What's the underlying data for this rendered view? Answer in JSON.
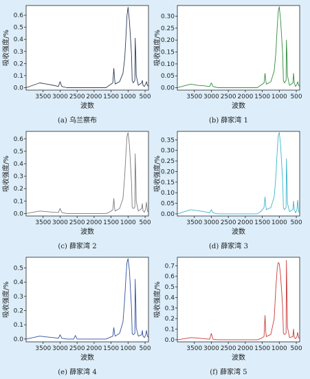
{
  "theme": {
    "background": "#ddeefa",
    "axis_color": "#222222"
  },
  "chart_data": [
    {
      "type": "line",
      "caption_label": "(a)",
      "caption_name": "乌兰察布",
      "xlabel": "波数",
      "ylabel": "吸收强度/%",
      "xlim": [
        4000,
        400
      ],
      "ylim": [
        -0.02,
        0.68
      ],
      "xticks": [
        3500,
        3000,
        2500,
        2000,
        1500,
        1000,
        500
      ],
      "yticks": [
        0.0,
        0.1,
        0.2,
        0.3,
        0.4,
        0.5,
        0.6
      ],
      "ytick_labels": [
        "0.0",
        "0.1",
        "0.2",
        "0.3",
        "0.4",
        "0.5",
        "0.6"
      ],
      "color": "#2a3a55",
      "series": [
        {
          "x": [
            4000,
            3800,
            3600,
            3400,
            3200,
            3050,
            3000,
            2950,
            2800,
            2600,
            2400,
            2200,
            2000,
            1800,
            1650,
            1550,
            1450,
            1420,
            1400,
            1380,
            1250,
            1150,
            1100,
            1060,
            1030,
            1000,
            960,
            900,
            880,
            850,
            800,
            790,
            770,
            760,
            700,
            600,
            580,
            560,
            520,
            480,
            460,
            430,
            400
          ],
          "y": [
            0.0,
            0.02,
            0.04,
            0.03,
            0.02,
            0.01,
            0.05,
            0.01,
            0.0,
            0.0,
            0.0,
            0.0,
            0.0,
            0.0,
            0.0,
            0.02,
            0.04,
            0.16,
            0.08,
            0.03,
            0.05,
            0.12,
            0.24,
            0.44,
            0.6,
            0.665,
            0.55,
            0.28,
            0.06,
            0.04,
            0.06,
            0.41,
            0.25,
            0.1,
            0.02,
            0.04,
            0.06,
            0.02,
            0.01,
            0.03,
            0.05,
            0.02,
            0.01
          ]
        }
      ]
    },
    {
      "type": "line",
      "caption_label": "(b)",
      "caption_name": "薛家湾 1",
      "xlabel": "波数",
      "ylabel": "吸收强度/%",
      "xlim": [
        4000,
        400
      ],
      "ylim": [
        -0.01,
        0.345
      ],
      "xticks": [
        3500,
        3000,
        2500,
        2000,
        1500,
        1000,
        500
      ],
      "yticks": [
        0.0,
        0.05,
        0.1,
        0.15,
        0.2,
        0.25,
        0.3
      ],
      "ytick_labels": [
        "0.00",
        "0.05",
        "0.10",
        "0.15",
        "0.20",
        "0.25",
        "0.30"
      ],
      "color": "#2e8b3e",
      "series": [
        {
          "x": [
            4000,
            3800,
            3600,
            3400,
            3200,
            3050,
            3000,
            2950,
            2800,
            2600,
            2400,
            2200,
            2000,
            1800,
            1650,
            1550,
            1450,
            1420,
            1400,
            1380,
            1250,
            1150,
            1100,
            1060,
            1030,
            1000,
            960,
            900,
            880,
            850,
            800,
            790,
            770,
            760,
            700,
            600,
            580,
            560,
            520,
            480,
            460,
            430,
            400
          ],
          "y": [
            0.0,
            0.008,
            0.015,
            0.01,
            0.008,
            0.005,
            0.02,
            0.005,
            0.0,
            0.0,
            0.0,
            0.0,
            0.0,
            0.0,
            0.0,
            0.01,
            0.02,
            0.06,
            0.03,
            0.015,
            0.025,
            0.07,
            0.15,
            0.26,
            0.32,
            0.34,
            0.28,
            0.14,
            0.03,
            0.02,
            0.03,
            0.2,
            0.12,
            0.05,
            0.01,
            0.02,
            0.06,
            0.02,
            0.005,
            0.015,
            0.025,
            0.01,
            0.005
          ]
        }
      ]
    },
    {
      "type": "line",
      "caption_label": "(c)",
      "caption_name": "薛家湾 2",
      "xlabel": "波数",
      "ylabel": "吸收强度/%",
      "xlim": [
        4000,
        400
      ],
      "ylim": [
        -0.02,
        0.66
      ],
      "xticks": [
        3500,
        3000,
        2500,
        2000,
        1500,
        1000,
        500
      ],
      "yticks": [
        0.0,
        0.1,
        0.2,
        0.3,
        0.4,
        0.5,
        0.6
      ],
      "ytick_labels": [
        "0.0",
        "0.1",
        "0.2",
        "0.3",
        "0.4",
        "0.5",
        "0.6"
      ],
      "color": "#7a7a7a",
      "series": [
        {
          "x": [
            4000,
            3800,
            3600,
            3400,
            3200,
            3050,
            3000,
            2950,
            2800,
            2600,
            2400,
            2200,
            2000,
            1800,
            1650,
            1550,
            1450,
            1420,
            1400,
            1380,
            1250,
            1150,
            1100,
            1060,
            1030,
            1000,
            960,
            900,
            880,
            850,
            800,
            790,
            770,
            760,
            700,
            600,
            580,
            560,
            520,
            480,
            460,
            430,
            400
          ],
          "y": [
            0.0,
            0.01,
            0.02,
            0.015,
            0.01,
            0.008,
            0.04,
            0.008,
            0.0,
            0.0,
            0.0,
            0.0,
            0.0,
            0.0,
            0.0,
            0.01,
            0.03,
            0.12,
            0.05,
            0.02,
            0.04,
            0.12,
            0.3,
            0.5,
            0.62,
            0.65,
            0.55,
            0.25,
            0.05,
            0.04,
            0.05,
            0.48,
            0.28,
            0.1,
            0.02,
            0.04,
            0.08,
            0.02,
            0.01,
            0.04,
            0.09,
            0.02,
            0.01
          ]
        }
      ]
    },
    {
      "type": "line",
      "caption_label": "(d)",
      "caption_name": "薛家湾 3",
      "xlabel": "波数",
      "ylabel": "吸收强度/%",
      "xlim": [
        4000,
        400
      ],
      "ylim": [
        -0.01,
        0.39
      ],
      "xticks": [
        3500,
        3000,
        2500,
        2000,
        1500,
        1000,
        500
      ],
      "yticks": [
        0.0,
        0.05,
        0.1,
        0.15,
        0.2,
        0.25,
        0.3,
        0.35
      ],
      "ytick_labels": [
        "0.00",
        "0.05",
        "0.10",
        "0.15",
        "0.20",
        "0.25",
        "0.30",
        "0.35"
      ],
      "color": "#3bb6cc",
      "series": [
        {
          "x": [
            4000,
            3800,
            3600,
            3400,
            3200,
            3050,
            3000,
            2950,
            2800,
            2600,
            2400,
            2200,
            2000,
            1800,
            1650,
            1550,
            1450,
            1420,
            1400,
            1380,
            1250,
            1150,
            1100,
            1060,
            1030,
            1000,
            960,
            900,
            880,
            850,
            800,
            790,
            770,
            760,
            700,
            600,
            580,
            560,
            520,
            480,
            460,
            430,
            400
          ],
          "y": [
            0.0,
            0.01,
            0.02,
            0.015,
            0.01,
            0.005,
            0.02,
            0.005,
            0.0,
            0.0,
            0.0,
            0.0,
            0.0,
            0.0,
            0.0,
            0.01,
            0.03,
            0.08,
            0.04,
            0.02,
            0.03,
            0.08,
            0.18,
            0.3,
            0.37,
            0.385,
            0.32,
            0.15,
            0.03,
            0.02,
            0.03,
            0.26,
            0.15,
            0.05,
            0.01,
            0.02,
            0.06,
            0.02,
            0.005,
            0.02,
            0.065,
            0.01,
            0.005
          ]
        }
      ]
    },
    {
      "type": "line",
      "caption_label": "(e)",
      "caption_name": "薛家湾 4",
      "xlabel": "波数",
      "ylabel": "吸收强度/%",
      "xlim": [
        4000,
        400
      ],
      "ylim": [
        -0.02,
        0.575
      ],
      "xticks": [
        3500,
        3000,
        2500,
        2000,
        1500,
        1000,
        500
      ],
      "yticks": [
        0.0,
        0.1,
        0.2,
        0.3,
        0.4,
        0.5
      ],
      "ytick_labels": [
        "0.0",
        "0.1",
        "0.2",
        "0.3",
        "0.4",
        "0.5"
      ],
      "color": "#2f4fa0",
      "series": [
        {
          "x": [
            4000,
            3800,
            3600,
            3400,
            3200,
            3050,
            3000,
            2950,
            2800,
            2600,
            2550,
            2500,
            2400,
            2200,
            2000,
            1800,
            1650,
            1550,
            1450,
            1420,
            1400,
            1380,
            1250,
            1150,
            1100,
            1060,
            1030,
            1000,
            960,
            900,
            880,
            850,
            800,
            790,
            770,
            760,
            700,
            600,
            580,
            560,
            520,
            480,
            460,
            430,
            400
          ],
          "y": [
            0.0,
            0.01,
            0.02,
            0.015,
            0.01,
            0.005,
            0.03,
            0.005,
            0.0,
            0.0,
            0.025,
            0.0,
            0.0,
            0.0,
            0.0,
            0.0,
            0.0,
            0.01,
            0.02,
            0.08,
            0.04,
            0.02,
            0.04,
            0.12,
            0.28,
            0.45,
            0.54,
            0.565,
            0.48,
            0.22,
            0.04,
            0.03,
            0.04,
            0.42,
            0.24,
            0.08,
            0.02,
            0.03,
            0.06,
            0.02,
            0.01,
            0.03,
            0.06,
            0.02,
            0.01
          ]
        }
      ]
    },
    {
      "type": "line",
      "caption_label": "(f)",
      "caption_name": "薛家湾 5",
      "xlabel": "波数",
      "ylabel": "吸收强度/%",
      "xlim": [
        4000,
        400
      ],
      "ylim": [
        -0.02,
        0.78
      ],
      "xticks": [
        3500,
        3000,
        2500,
        2000,
        1500,
        1000,
        500
      ],
      "yticks": [
        0.0,
        0.1,
        0.2,
        0.3,
        0.4,
        0.5,
        0.6,
        0.7
      ],
      "ytick_labels": [
        "0.0",
        "0.1",
        "0.2",
        "0.3",
        "0.4",
        "0.5",
        "0.6",
        "0.7"
      ],
      "color": "#c93a3a",
      "series": [
        {
          "x": [
            4000,
            3800,
            3600,
            3400,
            3200,
            3050,
            3000,
            2950,
            2800,
            2600,
            2400,
            2200,
            2000,
            1800,
            1650,
            1550,
            1450,
            1420,
            1400,
            1380,
            1250,
            1150,
            1100,
            1060,
            1030,
            1000,
            960,
            900,
            880,
            850,
            800,
            790,
            770,
            760,
            700,
            600,
            580,
            560,
            520,
            480,
            460,
            430,
            400
          ],
          "y": [
            0.0,
            0.01,
            0.02,
            0.015,
            0.01,
            0.005,
            0.06,
            0.005,
            0.0,
            0.0,
            0.0,
            0.0,
            0.0,
            0.0,
            0.0,
            0.01,
            0.03,
            0.23,
            0.08,
            0.03,
            0.05,
            0.2,
            0.5,
            0.68,
            0.73,
            0.72,
            0.6,
            0.3,
            0.06,
            0.05,
            0.06,
            0.75,
            0.35,
            0.12,
            0.02,
            0.03,
            0.1,
            0.02,
            0.01,
            0.03,
            0.07,
            0.02,
            0.01
          ]
        }
      ]
    }
  ]
}
